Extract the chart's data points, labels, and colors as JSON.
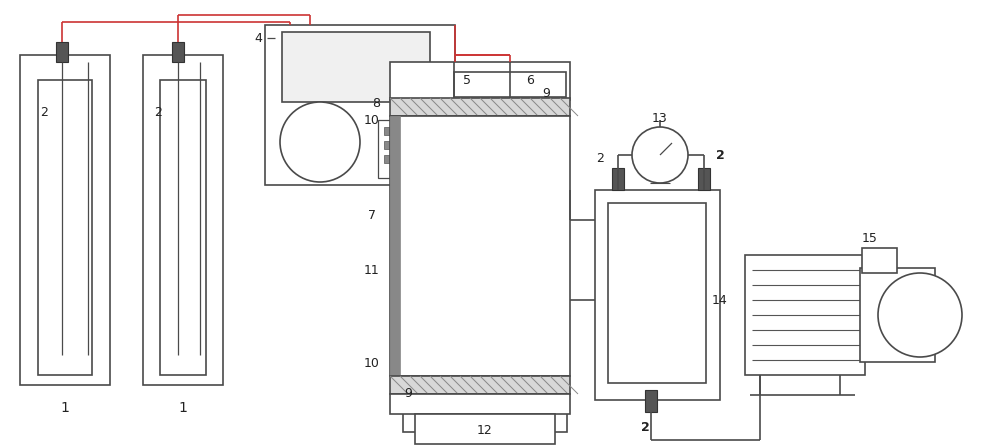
{
  "bg_color": "#ffffff",
  "line_color": "#4a4a4a",
  "lw": 1.2,
  "fig_width": 10.0,
  "fig_height": 4.45
}
